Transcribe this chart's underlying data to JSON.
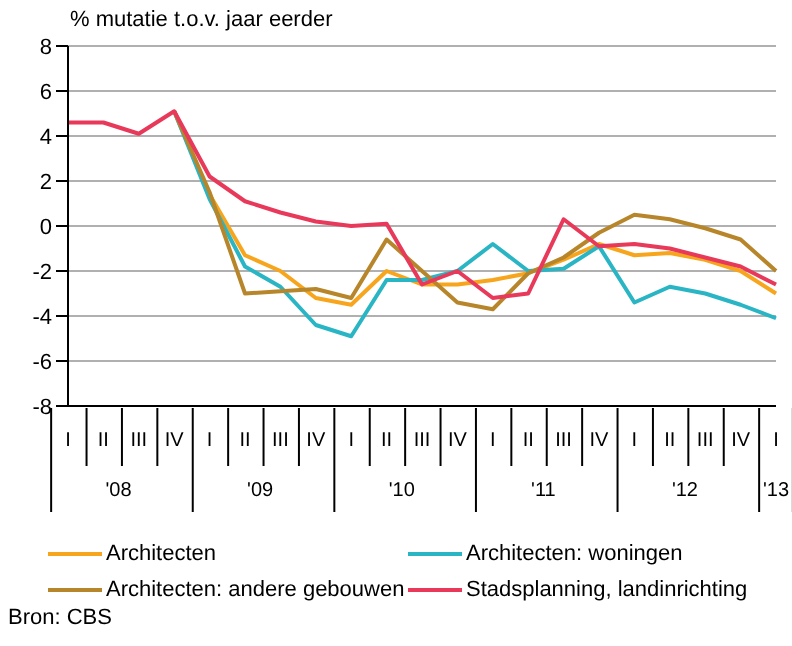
{
  "chart_data": {
    "type": "line",
    "ylabel": "% mutatie t.o.v. jaar eerder",
    "categories": [
      "I",
      "II",
      "III",
      "IV",
      "I",
      "II",
      "III",
      "IV",
      "I",
      "II",
      "III",
      "IV",
      "I",
      "II",
      "III",
      "IV",
      "I",
      "II",
      "III",
      "IV",
      "I"
    ],
    "series": [
      {
        "name": "Architecten",
        "color": "#f7a51c",
        "values": [
          null,
          null,
          null,
          5.1,
          1.4,
          -1.3,
          -2.0,
          -3.2,
          -3.5,
          -2.0,
          -2.6,
          -2.6,
          -2.4,
          -2.1,
          -1.5,
          -0.8,
          -1.3,
          -1.2,
          -1.5,
          -2.0,
          -3.0
        ]
      },
      {
        "name": "Architecten: woningen",
        "color": "#2ab5c4",
        "values": [
          null,
          null,
          null,
          5.1,
          1.2,
          -1.8,
          -2.7,
          -4.4,
          -4.9,
          -2.4,
          -2.4,
          -2.0,
          -0.8,
          -2.0,
          -1.9,
          -0.9,
          -3.4,
          -2.7,
          -3.0,
          -3.5,
          -4.1
        ]
      },
      {
        "name": "Architecten: andere gebouwen",
        "color": "#b8862a",
        "values": [
          null,
          null,
          null,
          5.1,
          1.5,
          -3.0,
          -2.9,
          -2.8,
          -3.2,
          -0.6,
          -2.0,
          -3.4,
          -3.7,
          -2.1,
          -1.4,
          -0.3,
          0.5,
          0.3,
          -0.1,
          -0.6,
          -2.0
        ]
      },
      {
        "name": "Stadsplanning, landinrichting",
        "color": "#e8395a",
        "values": [
          4.6,
          4.6,
          4.1,
          5.1,
          2.2,
          1.1,
          0.6,
          0.2,
          0.0,
          0.1,
          -2.6,
          -2.0,
          -3.2,
          -3.0,
          0.3,
          -0.9,
          -0.8,
          -1.0,
          -1.4,
          -1.8,
          -2.6
        ]
      }
    ],
    "ylim": [
      -8,
      8
    ],
    "yticks": [
      -8,
      -6,
      -4,
      -2,
      0,
      2,
      4,
      6,
      8
    ],
    "grid": "y",
    "legend": "bottom",
    "marker": "none",
    "line_style": "solid",
    "annotations": [
      "'08",
      "'09",
      "'10",
      "'11",
      "'12",
      "'13",
      "Bron: CBS"
    ]
  }
}
